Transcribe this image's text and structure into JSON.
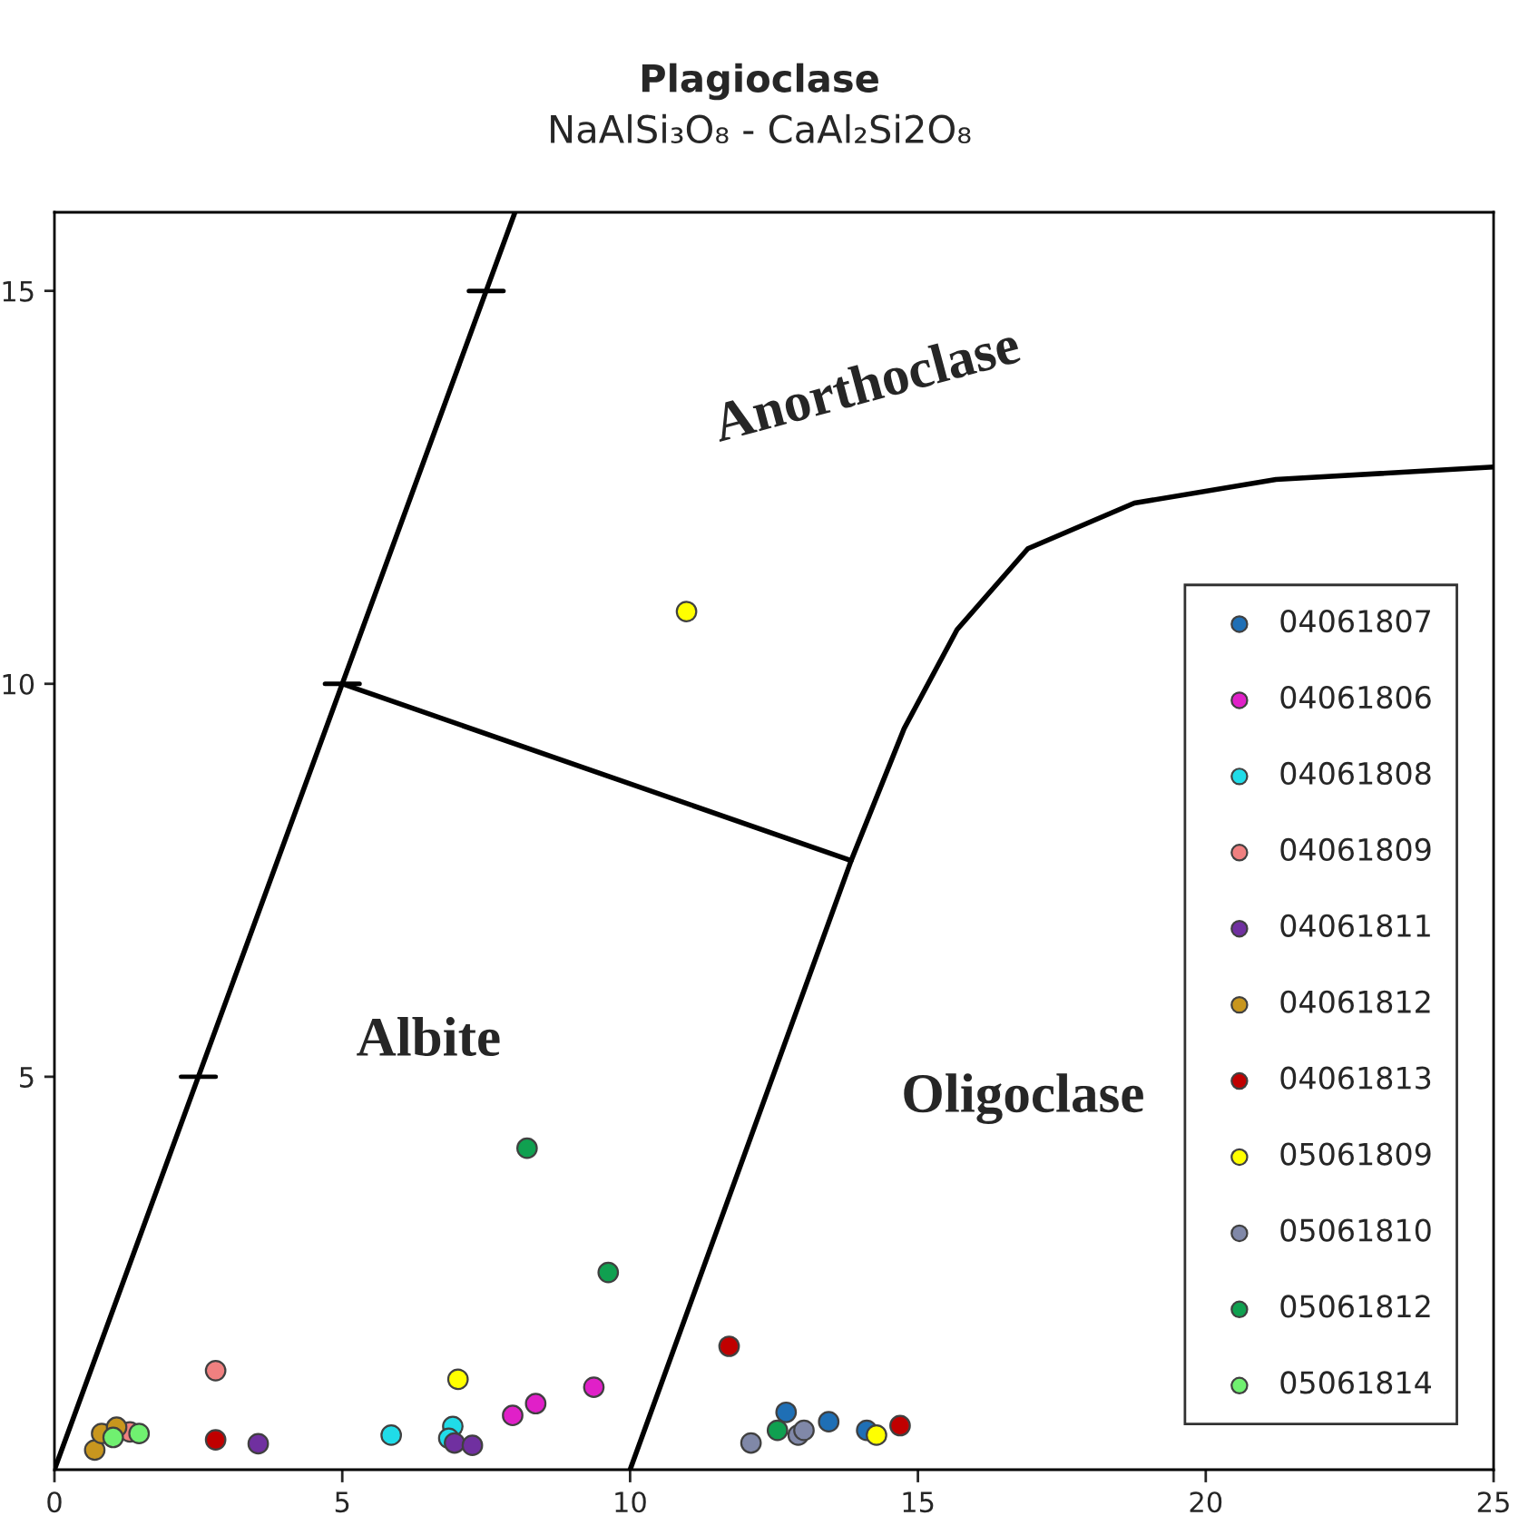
{
  "chart_data": {
    "type": "scatter",
    "title": "Plagioclase",
    "subtitle": "NaAlSi₃O₈ - CaAl₂Si2O₈",
    "xlim": [
      0,
      25
    ],
    "xticks": [
      0,
      5,
      10,
      15,
      20,
      25
    ],
    "ylim": [
      0,
      16
    ],
    "yticks": [
      5,
      10,
      15
    ],
    "grid": false,
    "legend": "right",
    "marker": "circle",
    "annotations": [
      "Anorthoclase",
      "Albite",
      "Oligoclase"
    ],
    "series": [
      {
        "type": "line",
        "marker": "none",
        "color": "#000000",
        "x": [
          0,
          8
        ],
        "values": [
          0,
          16
        ]
      },
      {
        "type": "line",
        "marker": "none",
        "color": "#000000",
        "x": [
          5,
          13.84
        ],
        "values": [
          10,
          7.75
        ]
      },
      {
        "type": "line",
        "marker": "none",
        "color": "#000000",
        "x": [
          10,
          13.84,
          14.76,
          15.68,
          16.91,
          18.76,
          21.22,
          25
        ],
        "values": [
          0,
          7.75,
          9.43,
          10.69,
          11.72,
          12.3,
          12.6,
          12.76
        ]
      },
      {
        "name": "04061807",
        "color": "#1f6fb5",
        "x": [
          12.71,
          13.45,
          14.11
        ],
        "values": [
          0.73,
          0.61,
          0.5
        ]
      },
      {
        "name": "04061806",
        "color": "#e020c8",
        "x": [
          7.96,
          8.36,
          9.37
        ],
        "values": [
          0.69,
          0.84,
          1.05
        ]
      },
      {
        "name": "04061808",
        "color": "#20dce8",
        "x": [
          5.85,
          6.92,
          6.85
        ],
        "values": [
          0.44,
          0.55,
          0.4
        ]
      },
      {
        "name": "04061809",
        "color": "#f08080",
        "x": [
          1.31,
          2.8
        ],
        "values": [
          0.48,
          1.26
        ]
      },
      {
        "name": "04061811",
        "color": "#7030a0",
        "x": [
          3.54,
          6.95,
          7.26
        ],
        "values": [
          0.33,
          0.34,
          0.31
        ]
      },
      {
        "name": "04061812",
        "color": "#c8961e",
        "x": [
          0.7,
          0.82,
          1.08
        ],
        "values": [
          0.25,
          0.46,
          0.54
        ]
      },
      {
        "name": "04061813",
        "color": "#c00000",
        "x": [
          2.8,
          11.72,
          14.69
        ],
        "values": [
          0.38,
          1.57,
          0.56
        ]
      },
      {
        "name": "05061809",
        "color": "#ffff00",
        "x": [
          7.01,
          10.98,
          14.28
        ],
        "values": [
          1.15,
          10.92,
          0.44
        ]
      },
      {
        "name": "05061810",
        "color": "#8088a8",
        "x": [
          12.1,
          12.92,
          13.02
        ],
        "values": [
          0.34,
          0.44,
          0.5
        ]
      },
      {
        "name": "05061812",
        "color": "#10a050",
        "x": [
          8.21,
          9.62,
          12.56
        ],
        "values": [
          4.09,
          2.51,
          0.5
        ]
      },
      {
        "name": "05061814",
        "color": "#70f070",
        "x": [
          1.02,
          1.47
        ],
        "values": [
          0.41,
          0.46
        ]
      }
    ]
  }
}
